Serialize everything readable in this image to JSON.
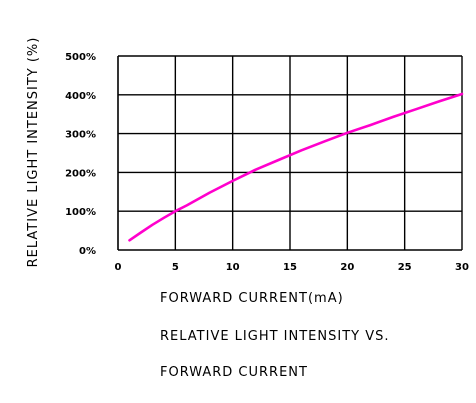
{
  "chart_data": {
    "type": "line",
    "title": "",
    "xlabel": "FORWARD CURRENT(mA)",
    "ylabel": "RELATIVE LIGHT INTENSITY (%)",
    "caption_lines": [
      "RELATIVE LIGHT INTENSITY VS.",
      "FORWARD CURRENT"
    ],
    "xlim": [
      0,
      30
    ],
    "ylim": [
      0,
      500
    ],
    "x_ticks": [
      0,
      5,
      10,
      15,
      20,
      25,
      30
    ],
    "x_tick_labels": [
      "0",
      "5",
      "10",
      "15",
      "20",
      "25",
      "30"
    ],
    "y_ticks": [
      0,
      100,
      200,
      300,
      400,
      500
    ],
    "y_tick_labels": [
      "0%",
      "100%",
      "200%",
      "300%",
      "400%",
      "500%"
    ],
    "grid": true,
    "series": [
      {
        "color": "#ff00cc",
        "x": [
          1,
          2,
          3,
          4,
          5,
          6,
          8,
          10,
          12,
          14,
          16,
          18,
          20,
          22,
          24,
          26,
          28,
          30
        ],
        "y": [
          25,
          45,
          65,
          83,
          100,
          115,
          148,
          178,
          207,
          232,
          257,
          280,
          302,
          322,
          343,
          363,
          383,
          402
        ]
      }
    ]
  }
}
